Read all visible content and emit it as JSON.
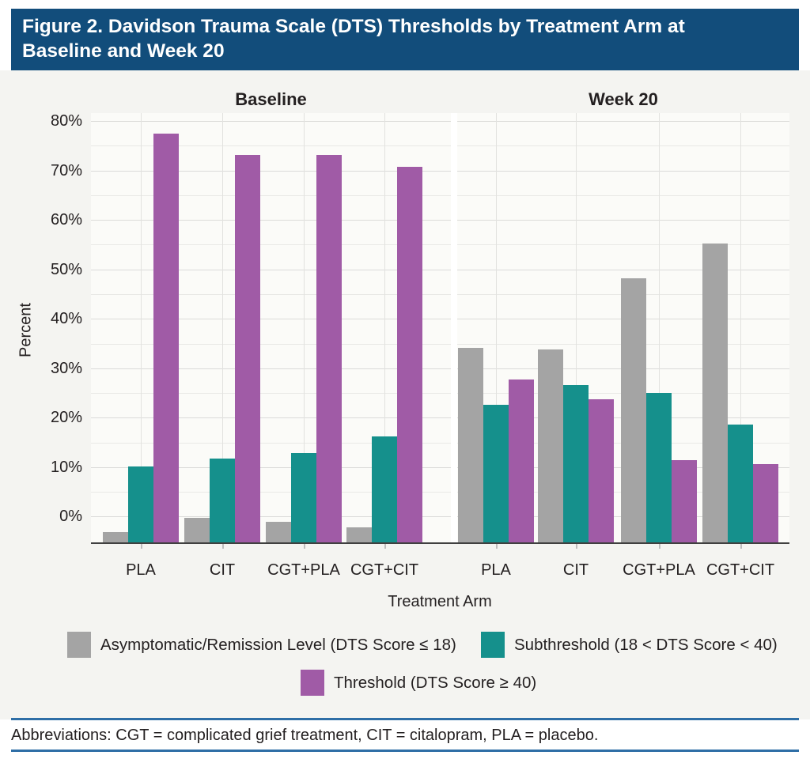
{
  "header": {
    "title_lines": [
      "Figure 2. Davidson Trauma Scale (DTS) Thresholds by Treatment Arm at",
      "Baseline and Week 20"
    ]
  },
  "colors": {
    "banner_bg": "#124d7b",
    "banner_text": "#ffffff",
    "asymptomatic": "#a4a4a4",
    "subthreshold": "#15908c",
    "threshold": "#a05ba6",
    "rule_blue": "#2e6ea6",
    "axis_line": "#404040"
  },
  "chart_data": {
    "type": "bar",
    "title": "Figure 2. Davidson Trauma Scale (DTS) Thresholds by Treatment Arm at Baseline and Week 20",
    "ylabel": "Percent",
    "xlabel": "Treatment Arm",
    "ylim": [
      -5.2,
      81.6
    ],
    "bar_baseline_value": -5.2,
    "grid": "on",
    "yticks_major_percent": [
      0,
      10,
      20,
      30,
      40,
      50,
      60,
      70,
      80
    ],
    "ytick_labels": [
      "0%",
      "10%",
      "20%",
      "30%",
      "40%",
      "50%",
      "60%",
      "70%",
      "80%"
    ],
    "yticks_minor_step": 5,
    "categories": [
      "PLA",
      "CIT",
      "CGT+PLA",
      "CGT+CIT"
    ],
    "panels": [
      {
        "title": "Baseline",
        "series": [
          {
            "key": "asymptomatic",
            "values": [
              -3.2,
              -0.2,
              -1.0,
              -2.1
            ]
          },
          {
            "key": "subthreshold",
            "values": [
              10.1,
              11.8,
              12.8,
              16.3
            ]
          },
          {
            "key": "threshold",
            "values": [
              77.5,
              73.2,
              73.1,
              70.8
            ]
          }
        ]
      },
      {
        "title": "Week 20",
        "series": [
          {
            "key": "asymptomatic",
            "values": [
              34.1,
              33.8,
              48.2,
              55.3
            ]
          },
          {
            "key": "subthreshold",
            "values": [
              22.6,
              26.6,
              25.0,
              18.6
            ]
          },
          {
            "key": "threshold",
            "values": [
              27.7,
              23.8,
              11.4,
              10.6
            ]
          }
        ]
      }
    ],
    "legend": [
      {
        "key": "asymptomatic",
        "label": "Asymptomatic/Remission Level (DTS Score ≤ 18)"
      },
      {
        "key": "subthreshold",
        "label": "Subthreshold (18 < DTS Score < 40)"
      },
      {
        "key": "threshold",
        "label": "Threshold (DTS Score ≥ 40)"
      }
    ],
    "legend_position": "bottom"
  },
  "footer": {
    "abbreviations": "Abbreviations: CGT = complicated grief treatment, CIT = citalopram, PLA = placebo."
  }
}
